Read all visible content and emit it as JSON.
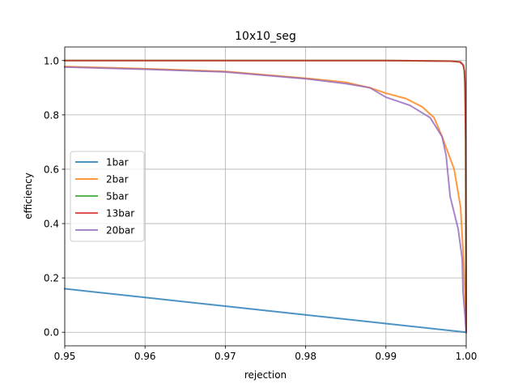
{
  "chart_data": {
    "type": "line",
    "title": "10x10_seg",
    "xlabel": "rejection",
    "ylabel": "efficiency",
    "xlim": [
      0.95,
      1.0
    ],
    "ylim": [
      -0.05,
      1.05
    ],
    "xticks": [
      0.95,
      0.96,
      0.97,
      0.98,
      0.99,
      1.0
    ],
    "xtick_labels": [
      "0.95",
      "0.96",
      "0.97",
      "0.98",
      "0.99",
      "1.00"
    ],
    "yticks": [
      0.0,
      0.2,
      0.4,
      0.6,
      0.8,
      1.0
    ],
    "ytick_labels": [
      "0.0",
      "0.2",
      "0.4",
      "0.6",
      "0.8",
      "1.0"
    ],
    "grid": true,
    "legend_position": "center-left",
    "series": [
      {
        "name": "1bar",
        "color": "#1f77b4",
        "x": [
          0.95,
          0.96,
          0.97,
          0.98,
          0.99,
          1.0
        ],
        "y": [
          0.16,
          0.128,
          0.096,
          0.064,
          0.032,
          0.0
        ]
      },
      {
        "name": "2bar",
        "color": "#ff7f0e",
        "x": [
          0.95,
          0.96,
          0.97,
          0.98,
          0.985,
          0.988,
          0.99,
          0.9925,
          0.9945,
          0.996,
          0.997,
          0.9985,
          0.9993,
          0.9997,
          0.9999,
          1.0
        ],
        "y": [
          0.978,
          0.97,
          0.96,
          0.935,
          0.92,
          0.9,
          0.88,
          0.86,
          0.83,
          0.79,
          0.72,
          0.6,
          0.46,
          0.25,
          0.1,
          0.0
        ]
      },
      {
        "name": "5bar",
        "color": "#2ca02c",
        "x": [
          0.95,
          0.97,
          0.99,
          0.998,
          0.9993,
          0.9997,
          0.9999,
          1.0
        ],
        "y": [
          1.0,
          1.0,
          1.0,
          0.998,
          0.995,
          0.98,
          0.9,
          0.0
        ]
      },
      {
        "name": "13bar",
        "color": "#d62728",
        "x": [
          0.95,
          0.97,
          0.99,
          0.998,
          0.9992,
          0.9996,
          0.9998,
          0.99995,
          1.0
        ],
        "y": [
          1.0,
          1.0,
          1.0,
          0.998,
          0.995,
          0.985,
          0.96,
          0.7,
          0.0
        ]
      },
      {
        "name": "20bar",
        "color": "#9467bd",
        "x": [
          0.95,
          0.96,
          0.97,
          0.98,
          0.985,
          0.988,
          0.99,
          0.993,
          0.9955,
          0.997,
          0.9975,
          0.998,
          0.999,
          0.9995,
          0.9996,
          0.9998,
          1.0
        ],
        "y": [
          0.976,
          0.968,
          0.958,
          0.933,
          0.915,
          0.9,
          0.865,
          0.835,
          0.79,
          0.72,
          0.65,
          0.5,
          0.38,
          0.27,
          0.15,
          0.08,
          0.0
        ]
      }
    ]
  }
}
